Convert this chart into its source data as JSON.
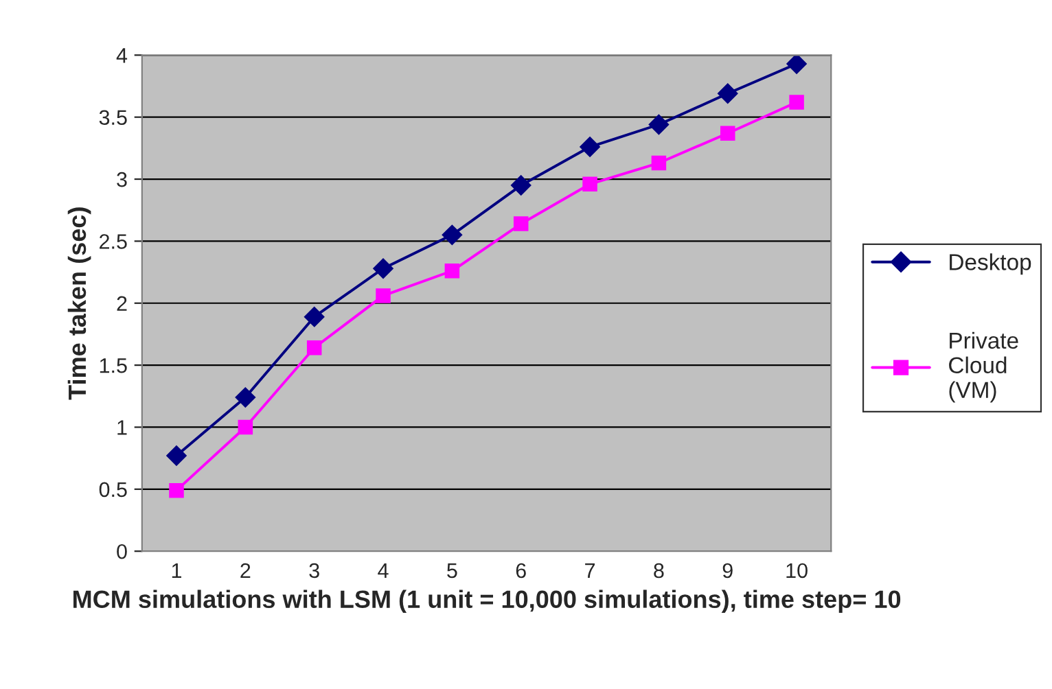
{
  "chart_data": {
    "type": "line",
    "xlabel": "MCM simulations with LSM (1 unit = 10,000 simulations), time step= 10",
    "ylabel": "Time taken (sec)",
    "categories": [
      "1",
      "2",
      "3",
      "4",
      "5",
      "6",
      "7",
      "8",
      "9",
      "10"
    ],
    "series": [
      {
        "name": "Desktop",
        "color": "#000080",
        "marker": "diamond",
        "values": [
          0.77,
          1.24,
          1.89,
          2.28,
          2.55,
          2.95,
          3.26,
          3.44,
          3.69,
          3.93
        ]
      },
      {
        "name": "Private Cloud (VM)",
        "color": "#ff00ff",
        "marker": "square",
        "values": [
          0.49,
          1.0,
          1.64,
          2.06,
          2.26,
          2.64,
          2.96,
          3.13,
          3.37,
          3.62
        ]
      }
    ],
    "ylim": [
      0,
      4
    ],
    "yticks": [
      0,
      0.5,
      1,
      1.5,
      2,
      2.5,
      3,
      3.5,
      4
    ],
    "grid": "y",
    "legend": "right",
    "line_style": "solid"
  }
}
